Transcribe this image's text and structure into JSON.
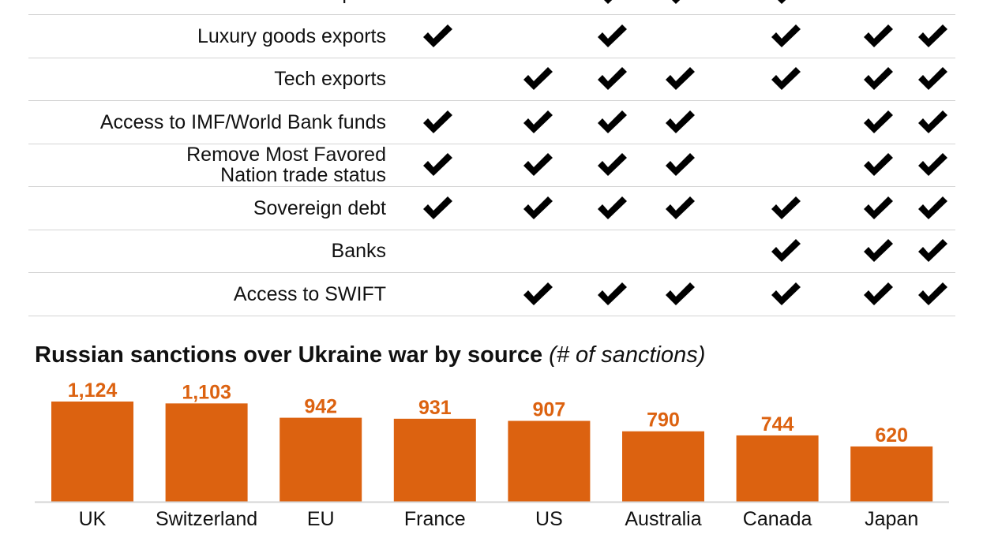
{
  "table": {
    "rows": [
      {
        "label": "Metal imports",
        "checks": [
          false,
          false,
          true,
          true,
          true,
          false,
          false
        ]
      },
      {
        "label": "Luxury goods exports",
        "checks": [
          true,
          false,
          true,
          false,
          true,
          true,
          true
        ]
      },
      {
        "label": "Tech exports",
        "checks": [
          false,
          true,
          true,
          true,
          true,
          true,
          true
        ]
      },
      {
        "label": "Access to IMF/World Bank funds",
        "checks": [
          true,
          true,
          true,
          true,
          false,
          true,
          true
        ]
      },
      {
        "label": "Remove Most Favored Nation trade status",
        "checks": [
          true,
          true,
          true,
          true,
          false,
          true,
          true
        ]
      },
      {
        "label": "Sovereign debt",
        "checks": [
          true,
          true,
          true,
          true,
          true,
          true,
          true
        ]
      },
      {
        "label": "Banks",
        "checks": [
          false,
          false,
          false,
          false,
          true,
          true,
          true
        ]
      },
      {
        "label": "Access to SWIFT",
        "checks": [
          false,
          true,
          true,
          true,
          true,
          true,
          true
        ]
      }
    ],
    "check_icon": "checkmark-icon"
  },
  "chart_data": {
    "type": "bar",
    "title": "Russian sanctions over Ukraine war by source",
    "subtitle": "(# of sanctions)",
    "categories": [
      "UK",
      "Switzerland",
      "EU",
      "France",
      "US",
      "Australia",
      "Canada",
      "Japan"
    ],
    "values": [
      1124,
      1103,
      942,
      931,
      907,
      790,
      744,
      620
    ],
    "value_labels": [
      "1,124",
      "1,103",
      "942",
      "931",
      "907",
      "790",
      "744",
      "620"
    ],
    "ylim": [
      0,
      1124
    ],
    "grid": false,
    "bar_color": "#dc6210",
    "label_color": "#dc6210"
  }
}
